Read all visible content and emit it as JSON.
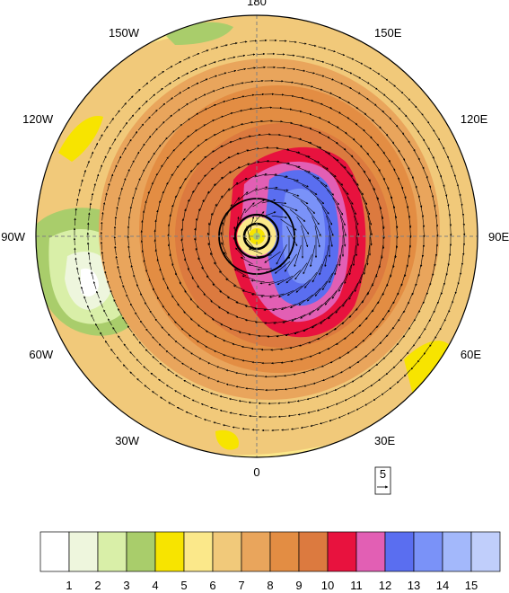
{
  "figure": {
    "longitude_labels": [
      {
        "text": "180",
        "angle_deg": 180
      },
      {
        "text": "150E",
        "angle_deg": 150
      },
      {
        "text": "120E",
        "angle_deg": 120
      },
      {
        "text": "90E",
        "angle_deg": 90
      },
      {
        "text": "60E",
        "angle_deg": 60
      },
      {
        "text": "30E",
        "angle_deg": 30
      },
      {
        "text": "0",
        "angle_deg": 0
      },
      {
        "text": "30W",
        "angle_deg": -30
      },
      {
        "text": "60W",
        "angle_deg": -60
      },
      {
        "text": "90W",
        "angle_deg": -90
      },
      {
        "text": "120W",
        "angle_deg": -120
      },
      {
        "text": "150W",
        "angle_deg": -150
      }
    ],
    "reference_vector": {
      "label": "5"
    },
    "colorbar": {
      "labels": [
        "1",
        "2",
        "3",
        "4",
        "5",
        "6",
        "7",
        "8",
        "9",
        "10",
        "11",
        "12",
        "13",
        "14",
        "15"
      ],
      "colors": [
        "#ffffff",
        "#eef6dd",
        "#d9efa8",
        "#a9cd6b",
        "#f7e400",
        "#fbe88a",
        "#f1c97a",
        "#e9a55c",
        "#e38d43",
        "#dc7a3f",
        "#e8123e",
        "#e25fb4",
        "#5a6ef0",
        "#7a92f8",
        "#a3b8fb",
        "#c0cefb"
      ]
    },
    "colors": {
      "background": "#ffffff",
      "grid": "#808080",
      "vector": "#000000"
    }
  }
}
